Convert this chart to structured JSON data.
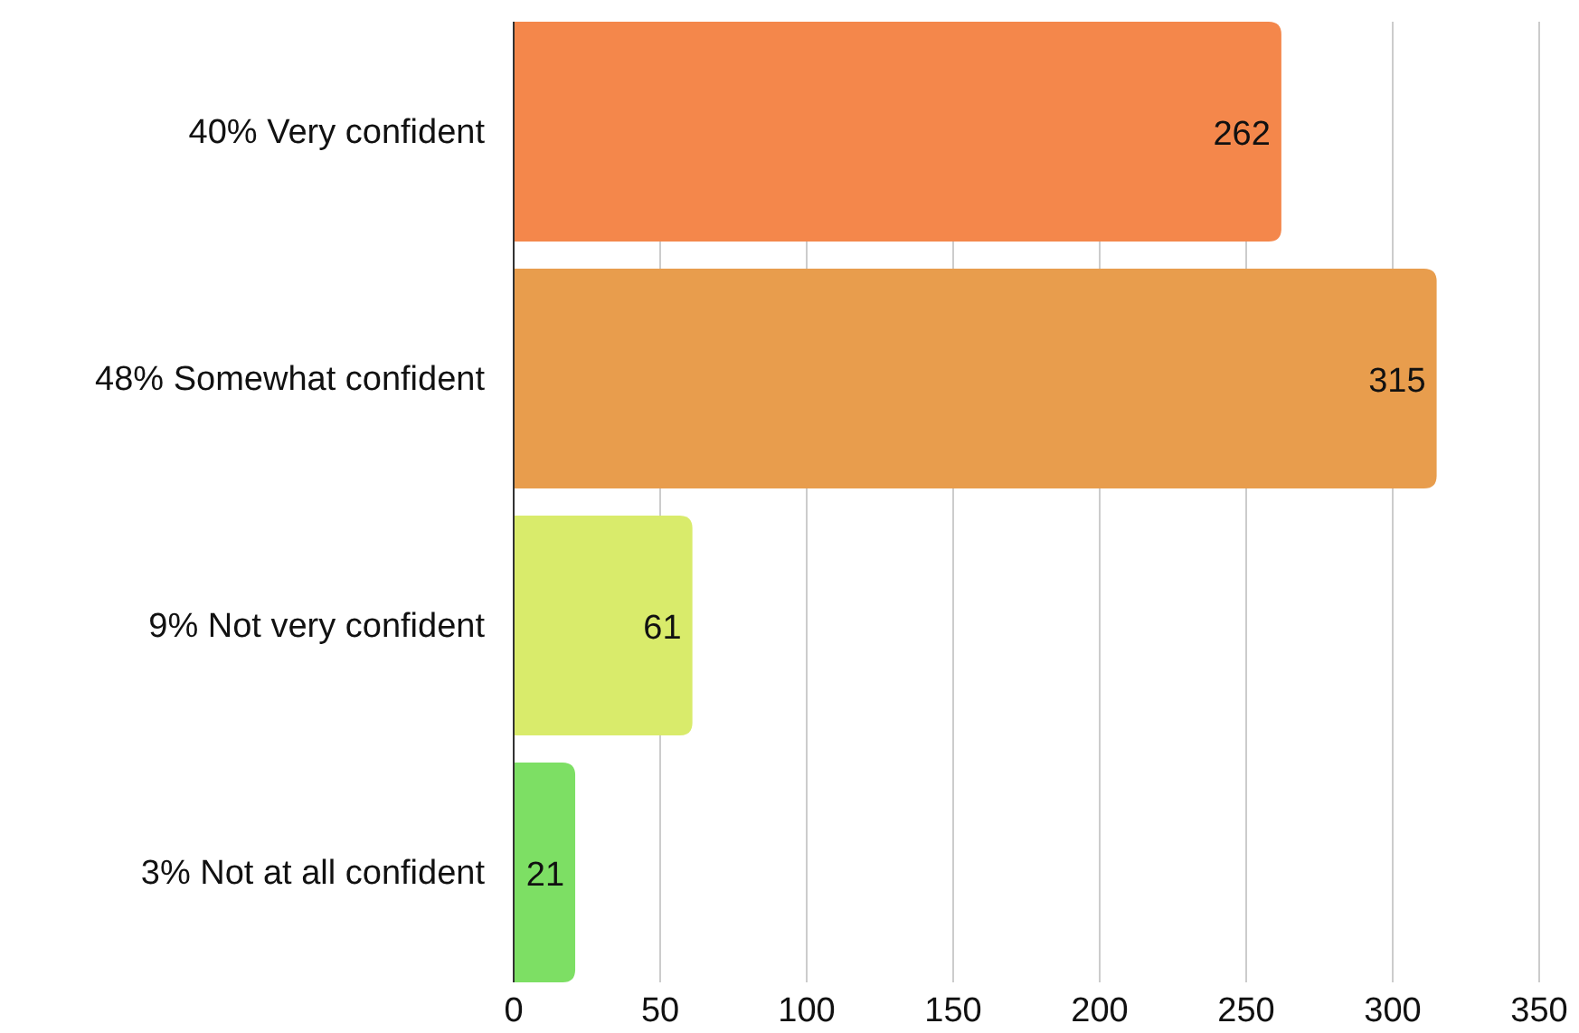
{
  "chart_data": {
    "type": "bar",
    "orientation": "horizontal",
    "categories": [
      "40% Very confident",
      "48% Somewhat confident",
      "9% Not very confident",
      "3% Not at all confident"
    ],
    "values": [
      262,
      315,
      61,
      21
    ],
    "colors": [
      "#f4874b",
      "#e89d4d",
      "#d9eb6b",
      "#7ddf64"
    ],
    "xlim": [
      0,
      350
    ],
    "xticks": [
      0,
      50,
      100,
      150,
      200,
      250,
      300,
      350
    ],
    "grid": "x",
    "data_labels": true
  }
}
